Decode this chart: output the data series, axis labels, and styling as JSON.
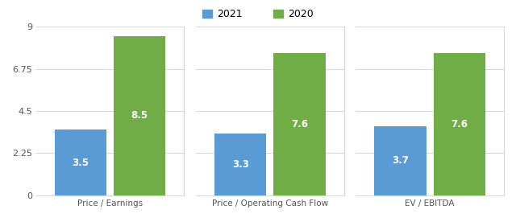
{
  "categories": [
    "Price / Earnings",
    "Price / Operating Cash Flow",
    "EV / EBITDA"
  ],
  "values_2021": [
    3.5,
    3.3,
    3.7
  ],
  "values_2020": [
    8.5,
    7.6,
    7.6
  ],
  "color_2021": "#5b9bd5",
  "color_2020": "#70ad47",
  "ylim": [
    0,
    9
  ],
  "yticks": [
    0,
    2.25,
    4.5,
    6.75,
    9
  ],
  "ytick_labels": [
    "0",
    "2.25",
    "4.5",
    "6.75",
    "9"
  ],
  "legend_labels": [
    "2021",
    "2020"
  ],
  "bar_width": 0.28,
  "background_color": "#ffffff",
  "label_color": "white",
  "label_fontsize": 8.5,
  "grid_color": "#d9d9d9"
}
